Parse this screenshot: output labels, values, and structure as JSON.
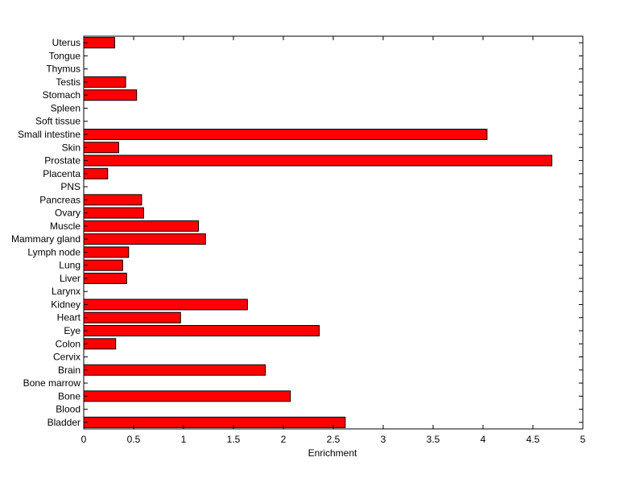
{
  "chart_data": {
    "type": "bar",
    "orientation": "horizontal",
    "title": "",
    "xlabel": "Enrichment",
    "ylabel": "",
    "xlim": [
      0,
      5
    ],
    "xticks": [
      "0",
      "0.5",
      "1",
      "1.5",
      "2",
      "2.5",
      "3",
      "3.5",
      "4",
      "4.5",
      "5"
    ],
    "grid": false,
    "legend": "none",
    "bar_color": "#ff0000",
    "edge_color": "#000000",
    "categories": [
      "Bladder",
      "Blood",
      "Bone",
      "Bone marrow",
      "Brain",
      "Cervix",
      "Colon",
      "Eye",
      "Heart",
      "Kidney",
      "Larynx",
      "Liver",
      "Lung",
      "Lymph node",
      "Mammary gland",
      "Muscle",
      "Ovary",
      "Pancreas",
      "PNS",
      "Placenta",
      "Prostate",
      "Skin",
      "Small intestine",
      "Soft tissue",
      "Spleen",
      "Stomach",
      "Testis",
      "Thymus",
      "Tongue",
      "Uterus"
    ],
    "values": [
      2.62,
      0,
      2.07,
      0,
      1.82,
      0,
      0.32,
      2.36,
      0.97,
      1.64,
      0,
      0.43,
      0.39,
      0.45,
      1.22,
      1.15,
      0.6,
      0.58,
      0,
      0.24,
      4.69,
      0.35,
      4.04,
      0,
      0,
      0.53,
      0.42,
      0,
      0,
      0.31
    ]
  }
}
